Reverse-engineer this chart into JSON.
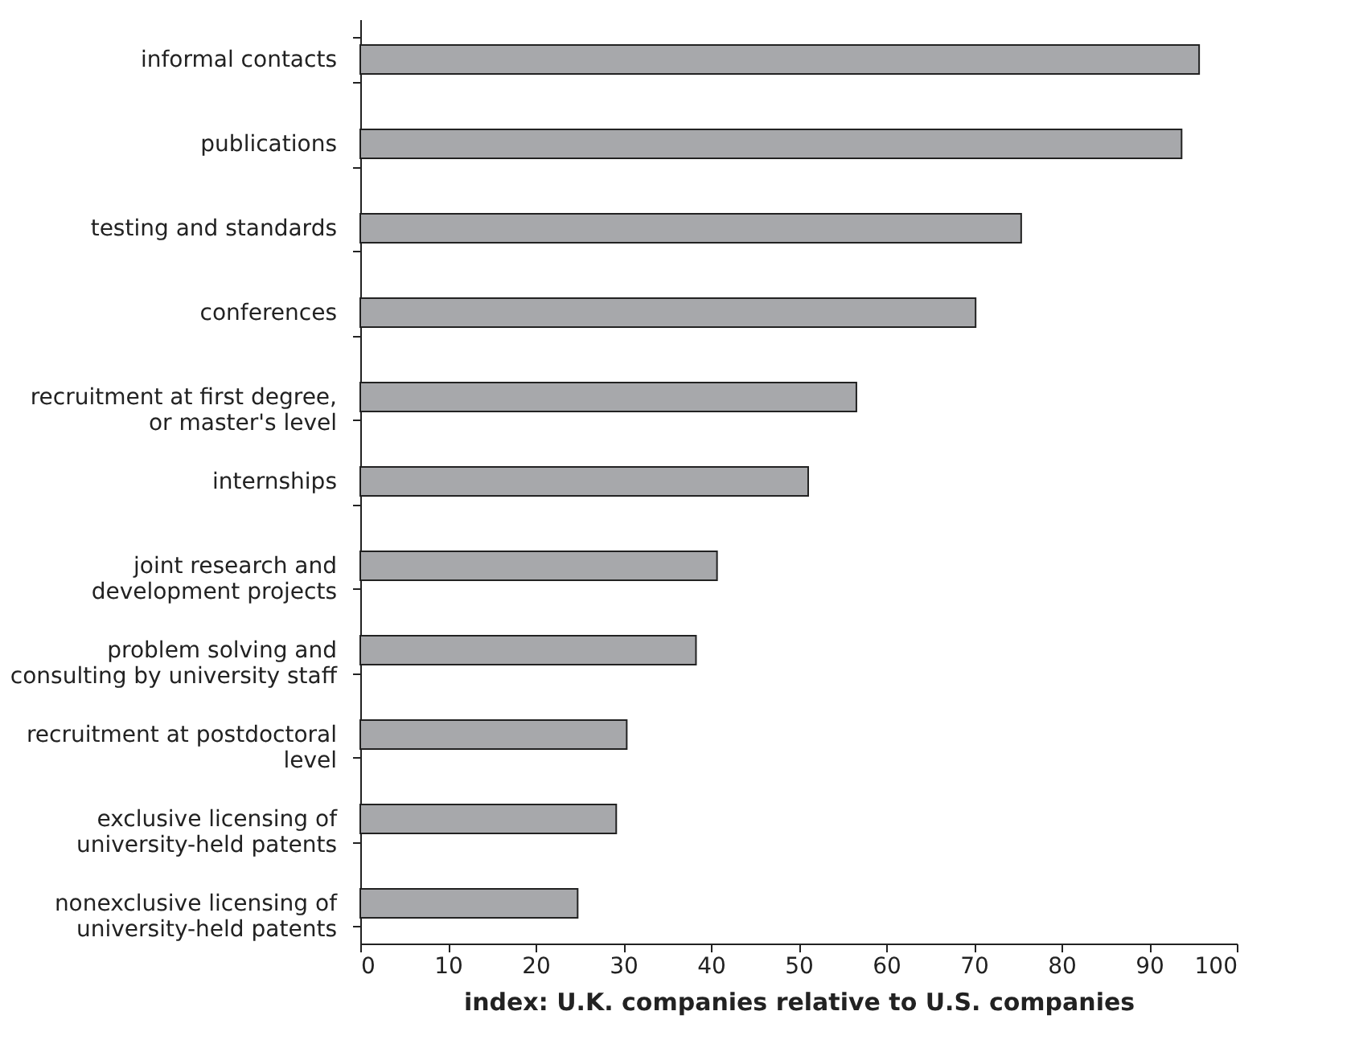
{
  "chart_data": {
    "type": "bar",
    "orientation": "horizontal",
    "xlabel": "index: U.K. companies relative to U.S. companies",
    "categories": [
      "informal contacts",
      "publications",
      "testing and standards",
      "conferences",
      "recruitment at first degree,\nor master's level",
      "internships",
      "joint research and\ndevelopment projects",
      "problem solving and\nconsulting by university staff",
      "recruitment at postdoctoral\nlevel",
      "exclusive licensing of\nuniversity-held patents",
      "nonexclusive licensing of\nuniversity-held patents"
    ],
    "values": [
      95.7,
      93.7,
      75.4,
      70.2,
      56.6,
      51.1,
      40.7,
      38.3,
      30.4,
      29.2,
      24.8
    ],
    "color": "#a7a8ab",
    "xlim": [
      0,
      100
    ],
    "xticks": [
      0,
      10,
      20,
      30,
      40,
      50,
      60,
      70,
      80,
      90,
      100
    ],
    "grid": false
  }
}
